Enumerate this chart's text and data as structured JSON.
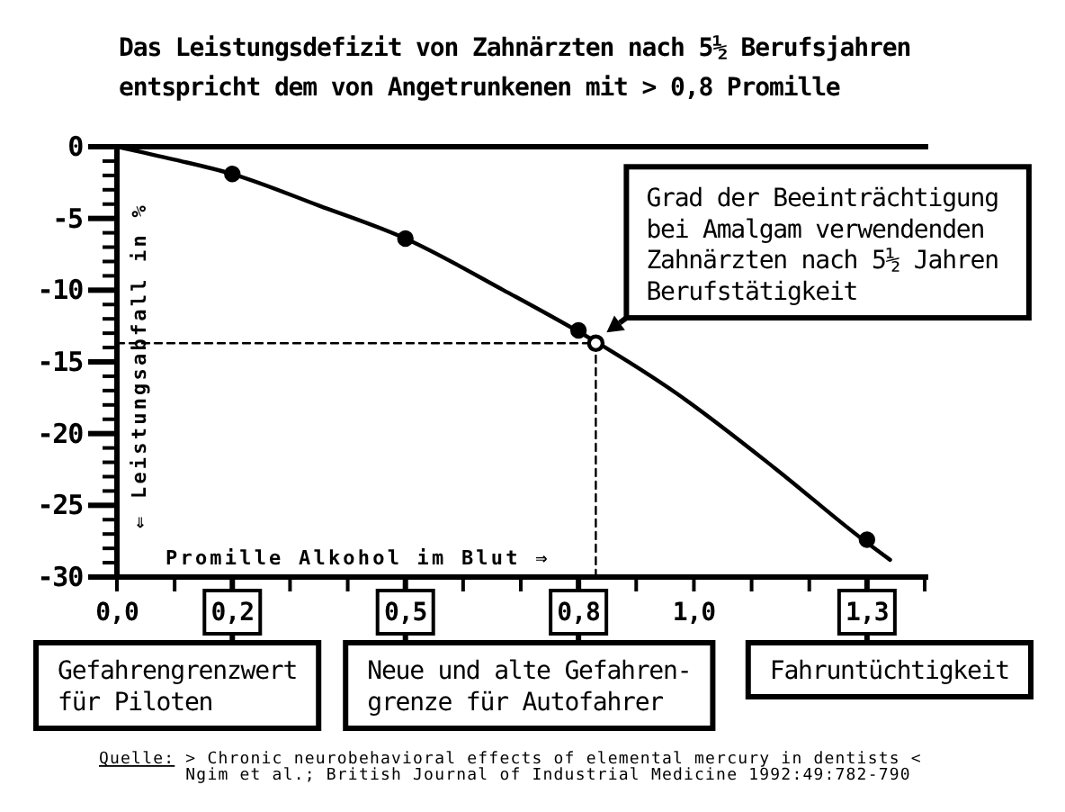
{
  "chart_data": {
    "type": "line",
    "title": "Das Leistungsdefizit von Zahnärzten nach 5½ Berufsjahren\nentspricht dem von Angetrunkenen mit > 0,8 Promille",
    "xlabel": "Promille Alkohol im Blut ⇒",
    "ylabel": "⇐ Leistungsabfall in %",
    "xlim": [
      0,
      1.4
    ],
    "ylim": [
      -30,
      0
    ],
    "xticks": [
      {
        "value": 0,
        "label": "0,0"
      },
      {
        "value": 0.1,
        "label": null
      },
      {
        "value": 0.2,
        "label": "0,2"
      },
      {
        "value": 0.3,
        "label": null
      },
      {
        "value": 0.4,
        "label": null
      },
      {
        "value": 0.5,
        "label": "0,5"
      },
      {
        "value": 0.6,
        "label": null
      },
      {
        "value": 0.7,
        "label": null
      },
      {
        "value": 0.8,
        "label": "0,8"
      },
      {
        "value": 0.9,
        "label": null
      },
      {
        "value": 1.0,
        "label": "1,0"
      },
      {
        "value": 1.1,
        "label": null
      },
      {
        "value": 1.2,
        "label": null
      },
      {
        "value": 1.3,
        "label": "1,3"
      },
      {
        "value": 1.4,
        "label": null
      }
    ],
    "yticks": [
      0,
      {
        "value": -1,
        "label": null
      },
      {
        "value": -2,
        "label": null
      },
      {
        "value": -3,
        "label": null
      },
      {
        "value": -4,
        "label": null
      },
      -5,
      {
        "value": -6,
        "label": null
      },
      {
        "value": -7,
        "label": null
      },
      {
        "value": -8,
        "label": null
      },
      {
        "value": -9,
        "label": null
      },
      -10,
      {
        "value": -11,
        "label": null
      },
      {
        "value": -12,
        "label": null
      },
      {
        "value": -13,
        "label": null
      },
      {
        "value": -14,
        "label": null
      },
      -15,
      {
        "value": -16,
        "label": null
      },
      {
        "value": -17,
        "label": null
      },
      {
        "value": -18,
        "label": null
      },
      {
        "value": -19,
        "label": null
      },
      -20,
      {
        "value": -21,
        "label": null
      },
      {
        "value": -22,
        "label": null
      },
      {
        "value": -23,
        "label": null
      },
      {
        "value": -24,
        "label": null
      },
      -25,
      {
        "value": -26,
        "label": null
      },
      {
        "value": -27,
        "label": null
      },
      {
        "value": -28,
        "label": null
      },
      {
        "value": -29,
        "label": null
      },
      -30
    ],
    "series": [
      {
        "color": "#000000",
        "line_style": "solid",
        "marker": "none",
        "x": [
          0,
          0.1,
          0.2,
          0.35,
          0.5,
          0.67,
          0.83,
          0.97,
          1.14,
          1.29,
          1.34
        ],
        "values": [
          0,
          -0.9,
          -1.9,
          -4.1,
          -6.4,
          -10.0,
          -13.6,
          -17.2,
          -22.4,
          -27.3,
          -28.8
        ]
      },
      {
        "color": "#000000",
        "line_style": "dashed",
        "marker": "none",
        "x": [
          0,
          0.83,
          0.83
        ],
        "values": [
          -13.7,
          -13.7,
          -30
        ]
      },
      {
        "type": "scatter",
        "color": "#000000",
        "marker": "circle",
        "x": [
          0.2,
          0.5,
          0.8,
          1.3
        ],
        "values": [
          -1.9,
          -6.4,
          -12.8,
          -27.4
        ]
      },
      {
        "type": "scatter",
        "color": "#ffffff",
        "marker": "circle",
        "x": [
          0.83
        ],
        "values": [
          -13.7
        ]
      }
    ],
    "annotations": [
      {
        "text": "Grad der Beeinträchtigung\nbei Amalgam verwendenden\nZahnärzten nach 5½ Jahren\nBerufstätigkeit",
        "x": 0.83,
        "y": -13.7
      },
      "Gefahrengrenzwert\nfür Piloten",
      "Neue und alte Gefahren-\ngrenze für Autofahrer",
      "Fahruntüchtigkeit",
      "Quelle: > Chronic neurobehavioral effects of elemental mercury in dentists <\nNgim et al.; British Journal of Industrial Medicine 1992:49:782-790"
    ]
  }
}
